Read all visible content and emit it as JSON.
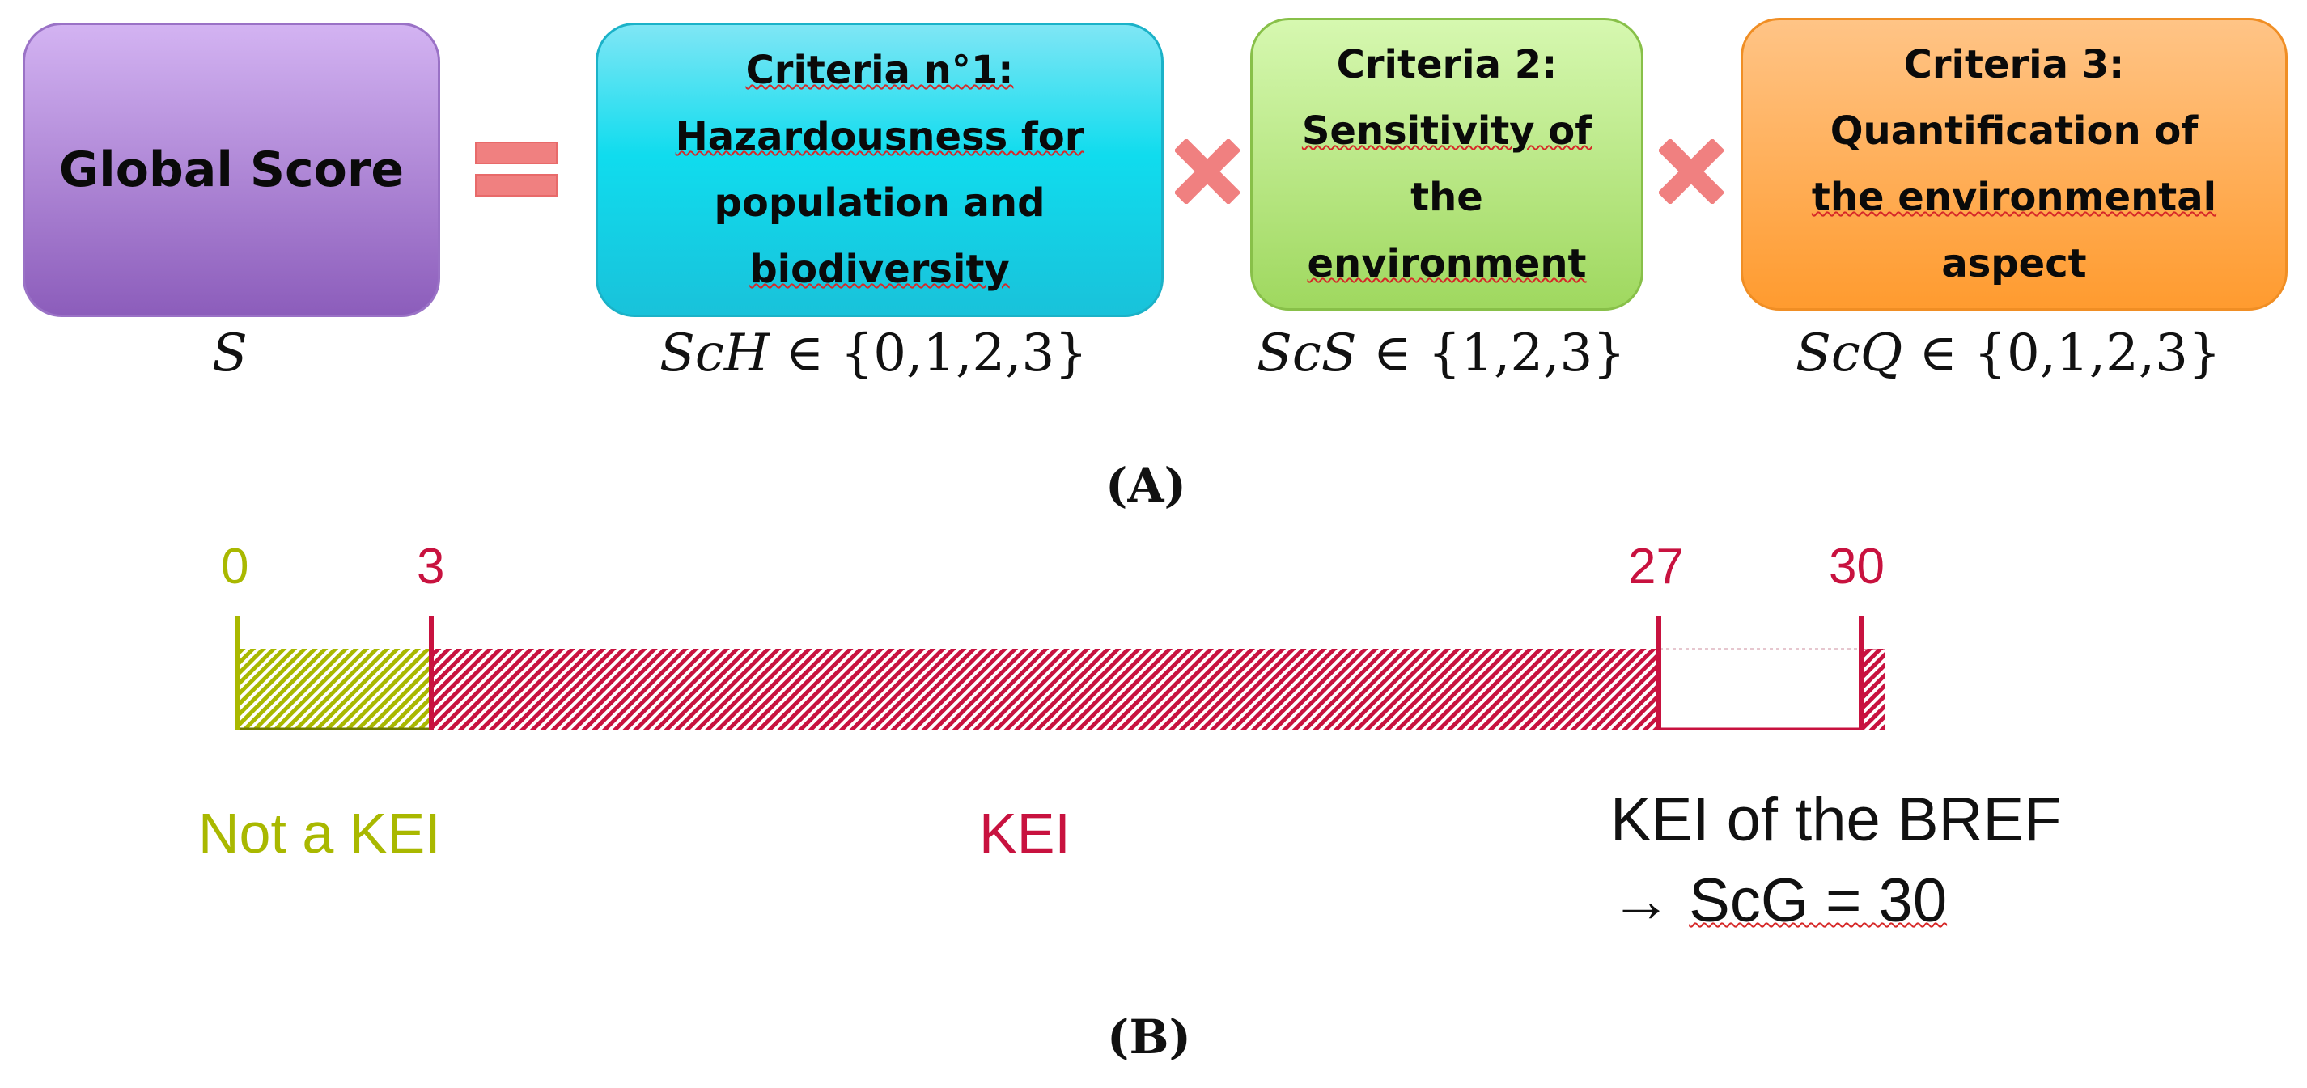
{
  "panel_a": {
    "label": "(A)",
    "global_box": {
      "text": "Global Score",
      "symbol": "S"
    },
    "equals_glyph": "equals-sign",
    "times_glyph": "multiply-cross",
    "criteria": [
      {
        "lines": [
          "Criteria n°1:",
          "Hazardousness for",
          "population and",
          "biodiversity"
        ],
        "var": "ScH",
        "set": "∈ {0,1,2,3}"
      },
      {
        "lines": [
          "Criteria 2:",
          "Sensitivity of",
          "the",
          "environment"
        ],
        "var": "ScS",
        "set": "∈ {1,2,3}"
      },
      {
        "lines": [
          "Criteria 3:",
          "Quantification of",
          "the environmental",
          "aspect"
        ],
        "var": "ScQ",
        "set": "∈ {0,1,2,3}"
      }
    ],
    "colors": {
      "global": "#a87ad6",
      "criteria1": "#12d6ec",
      "criteria2": "#a8df6a",
      "criteria3": "#ff9f3a",
      "operator": "#f08080"
    }
  },
  "panel_b": {
    "label": "(B)",
    "ticks": [
      {
        "value": 0,
        "label": "0",
        "color": "#a9b800"
      },
      {
        "value": 3,
        "label": "3",
        "color": "#c8123f"
      },
      {
        "value": 27,
        "label": "27",
        "color": "#c8123f"
      },
      {
        "value": 30,
        "label": "30",
        "color": "#c8123f"
      }
    ],
    "segments": [
      {
        "from": 0,
        "to": 3,
        "label": "Not a KEI",
        "color": "#a9b800",
        "fill": "hatched"
      },
      {
        "from": 3,
        "to": 27,
        "label": "KEI",
        "color": "#c8123f",
        "fill": "hatched"
      },
      {
        "from": 27,
        "to": 30,
        "label": "",
        "color": "#c8123f",
        "fill": "empty"
      }
    ],
    "note_line1": "KEI of the BREF",
    "note_arrow": "→",
    "note_line2": "ScG = 30"
  }
}
